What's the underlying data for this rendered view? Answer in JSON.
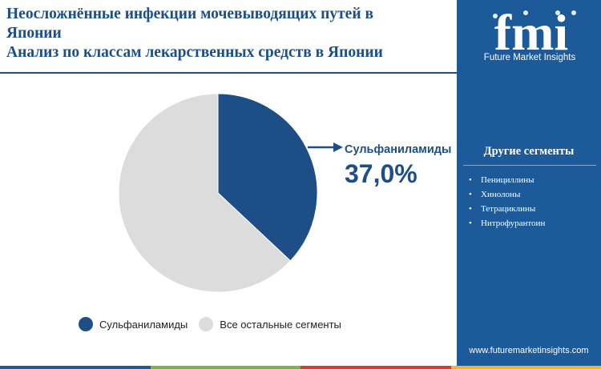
{
  "title": {
    "line1": "Неосложнённые инфекции мочевыводящих путей в",
    "line2": "Японии",
    "line3": "Анализ по классам лекарственных средств в Японии"
  },
  "logo": {
    "letters": "fmi",
    "subtitle": "Future Market Insights"
  },
  "sidebar": {
    "heading": "Другие сегменты",
    "items": [
      "Пенициллины",
      "Хинолоны",
      "Тетрациклины",
      "Нитрофурантоин"
    ],
    "website": "www.futuremarketinsights.com"
  },
  "colors": {
    "primary": "#1d4f86",
    "panel": "#1d5a9a",
    "rest": "#dcdcdc",
    "bar": [
      "#1d5a9a",
      "#7cb342",
      "#d63b2f",
      "#f2b233"
    ]
  },
  "chart_data": {
    "type": "pie",
    "title": "",
    "slices": [
      {
        "label": "Сульфаниламиды",
        "value": 37.0,
        "color": "#1d4f86"
      },
      {
        "label": "Все остальные сегменты",
        "value": 63.0,
        "color": "#dcdcdc"
      }
    ],
    "callout": {
      "label": "Сульфаниламиды",
      "value_text": "37,0%"
    },
    "legend": [
      "Сульфаниламиды",
      "Все остальные сегменты"
    ],
    "legend_position": "bottom"
  }
}
